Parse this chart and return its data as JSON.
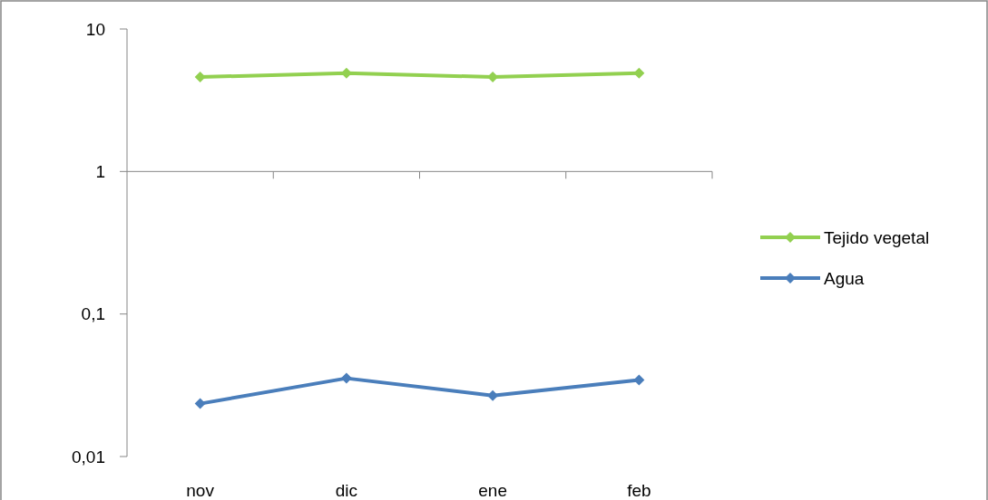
{
  "chart_data": {
    "type": "line",
    "categories": [
      "nov",
      "dic",
      "ene",
      "feb"
    ],
    "series": [
      {
        "name": "Tejido vegetal",
        "color": "#92d050",
        "values": [
          4.6,
          4.9,
          4.6,
          4.9
        ]
      },
      {
        "name": "Agua",
        "color": "#4a7ebb",
        "values": [
          0.0235,
          0.0354,
          0.0268,
          0.0344
        ]
      }
    ],
    "log": true,
    "ylim": [
      0.01,
      10
    ],
    "yticks": [
      {
        "value": 10,
        "label": "10"
      },
      {
        "value": 1,
        "label": "1"
      },
      {
        "value": 0.1,
        "label": "0,1"
      },
      {
        "value": 0.01,
        "label": "0,01"
      }
    ],
    "legend": "right",
    "marker": "diamond",
    "line_style": "solid"
  }
}
